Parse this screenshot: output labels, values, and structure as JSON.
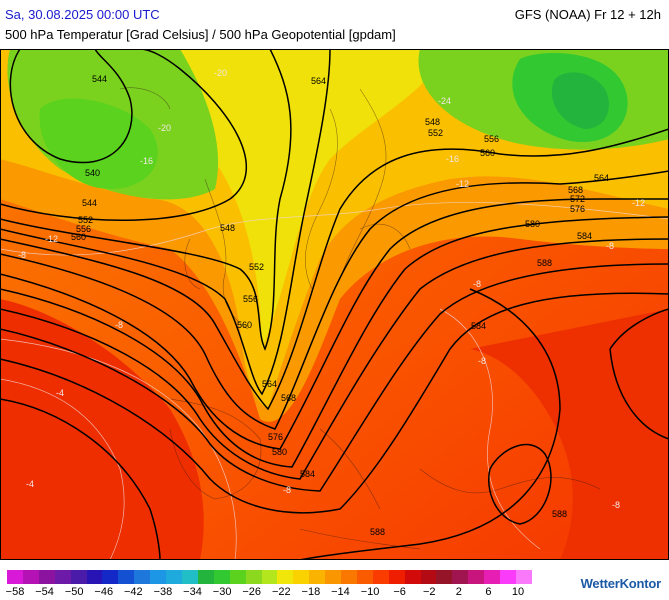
{
  "header": {
    "datetime": "Sa, 30.08.2025 00:00 UTC",
    "model": "GFS (NOAA) Fr 12 + 12h",
    "parameter": "500 hPa Temperatur [Grad Celsius] / 500 hPa Geopotential [gpdam]"
  },
  "map": {
    "geopotential_labels": [
      "544",
      "564",
      "540",
      "544",
      "548",
      "552",
      "556",
      "560",
      "548",
      "552",
      "556",
      "560",
      "564",
      "568",
      "572",
      "576",
      "580",
      "584",
      "588",
      "584",
      "552",
      "556",
      "560",
      "564",
      "568",
      "576",
      "580",
      "584",
      "588",
      "588"
    ],
    "temperature_labels": [
      "-20",
      "-20",
      "-16",
      "-12",
      "-24",
      "-16",
      "-12",
      "-12",
      "-8",
      "-8",
      "-8",
      "-8",
      "-8",
      "-8",
      "-4",
      "-4",
      "-8"
    ]
  },
  "legend": {
    "colors": [
      "#d81ad8",
      "#b412b4",
      "#8c12a0",
      "#6e1aa8",
      "#4a1aa8",
      "#2814b4",
      "#1428c8",
      "#1450d2",
      "#1e78dc",
      "#1e96e6",
      "#1eaadc",
      "#22bec8",
      "#22b43c",
      "#32c832",
      "#5ad21e",
      "#8cd81e",
      "#b4e61e",
      "#f0e60a",
      "#fad200",
      "#fab400",
      "#fa9600",
      "#fa7800",
      "#fa5a00",
      "#fa3c00",
      "#f01e00",
      "#d20a0a",
      "#b40a14",
      "#961428",
      "#a01450",
      "#c8147d",
      "#e61eb4",
      "#fa3cfa",
      "#fa78fa"
    ],
    "tick_labels": [
      "−58",
      "−54",
      "−50",
      "−46",
      "−42",
      "−38",
      "−34",
      "−30",
      "−26",
      "−22",
      "−18",
      "−14",
      "−10",
      "−6",
      "−2",
      "2",
      "6",
      "10"
    ]
  },
  "brand": "WetterKontor"
}
